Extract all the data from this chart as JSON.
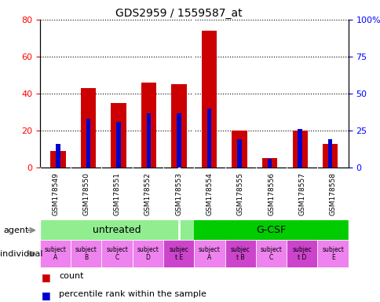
{
  "title": "GDS2959 / 1559587_at",
  "categories": [
    "GSM178549",
    "GSM178550",
    "GSM178551",
    "GSM178552",
    "GSM178553",
    "GSM178554",
    "GSM178555",
    "GSM178556",
    "GSM178557",
    "GSM178558"
  ],
  "count_values": [
    9,
    43,
    35,
    46,
    45,
    74,
    20,
    5,
    20,
    13
  ],
  "percentile_values": [
    16,
    33,
    31,
    37,
    37,
    40,
    19,
    6,
    26,
    19
  ],
  "ylim_left": [
    0,
    80
  ],
  "ylim_right": [
    0,
    100
  ],
  "yticks_left": [
    0,
    20,
    40,
    60,
    80
  ],
  "ytick_labels_right": [
    "0",
    "25",
    "50",
    "75",
    "100%"
  ],
  "yticks_right": [
    0,
    25,
    50,
    75,
    100
  ],
  "agent_groups": [
    {
      "label": "untreated",
      "start": 0,
      "end": 4,
      "color": "#90EE90"
    },
    {
      "label": "G-CSF",
      "start": 5,
      "end": 9,
      "color": "#00CC00"
    }
  ],
  "individual_labels": [
    "subject\nA",
    "subject\nB",
    "subject\nC",
    "subject\nD",
    "subjec\nt E",
    "subject\nA",
    "subjec\nt B",
    "subject\nC",
    "subjec\nt D",
    "subject\nE"
  ],
  "individual_highlight": [
    4,
    6,
    8
  ],
  "individual_bg_normal": "#EE82EE",
  "individual_bg_highlight": "#CC44CC",
  "bar_color_count": "#CC0000",
  "bar_color_percentile": "#0000CC",
  "bar_width": 0.5,
  "legend_count_label": "count",
  "legend_percentile_label": "percentile rank within the sample",
  "tick_area_bg": "#C8C8C8",
  "separator_after": 4
}
